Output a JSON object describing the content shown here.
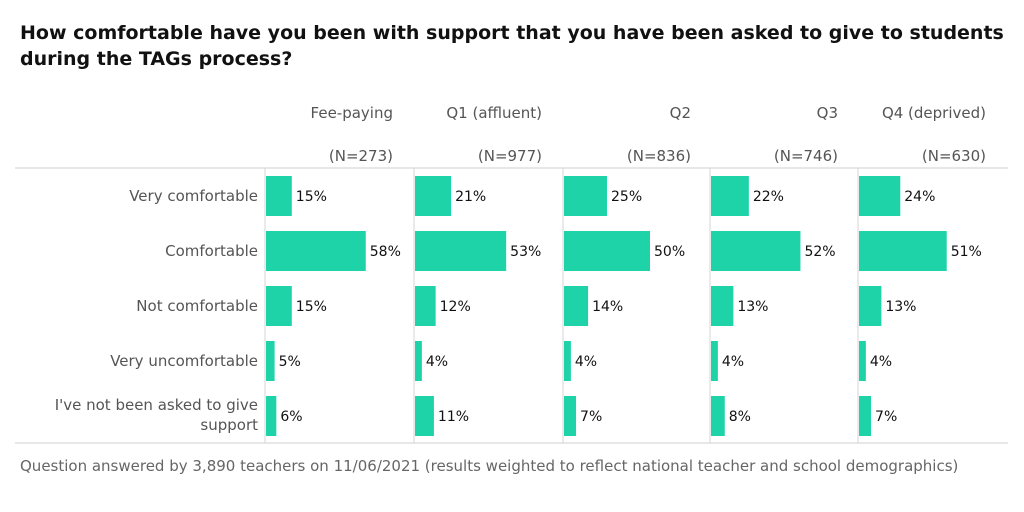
{
  "chart_data": {
    "type": "bar",
    "orientation": "horizontal",
    "title": "How comfortable have you been with support that you have been asked to give to students during the TAGs process?",
    "categories": [
      "Very comfortable",
      "Comfortable",
      "Not comfortable",
      "Very uncomfortable",
      "I've not been asked to give support"
    ],
    "panels": [
      {
        "name": "Fee-paying",
        "n_label": "(N=273)",
        "values": [
          15,
          58,
          15,
          5,
          6
        ]
      },
      {
        "name": "Q1 (affluent)",
        "n_label": "(N=977)",
        "values": [
          21,
          53,
          12,
          4,
          11
        ]
      },
      {
        "name": "Q2",
        "n_label": "(N=836)",
        "values": [
          25,
          50,
          14,
          4,
          7
        ]
      },
      {
        "name": "Q3",
        "n_label": "(N=746)",
        "values": [
          22,
          52,
          13,
          4,
          8
        ]
      },
      {
        "name": "Q4 (deprived)",
        "n_label": "(N=630)",
        "values": [
          24,
          51,
          13,
          4,
          7
        ]
      }
    ],
    "value_suffix": "%",
    "xlim": [
      0,
      100
    ],
    "bar_color": "#1fd3a8",
    "grid": false
  },
  "footnote": "Question answered by 3,890 teachers on 11/06/2021 (results weighted to reflect national teacher and school demographics)"
}
